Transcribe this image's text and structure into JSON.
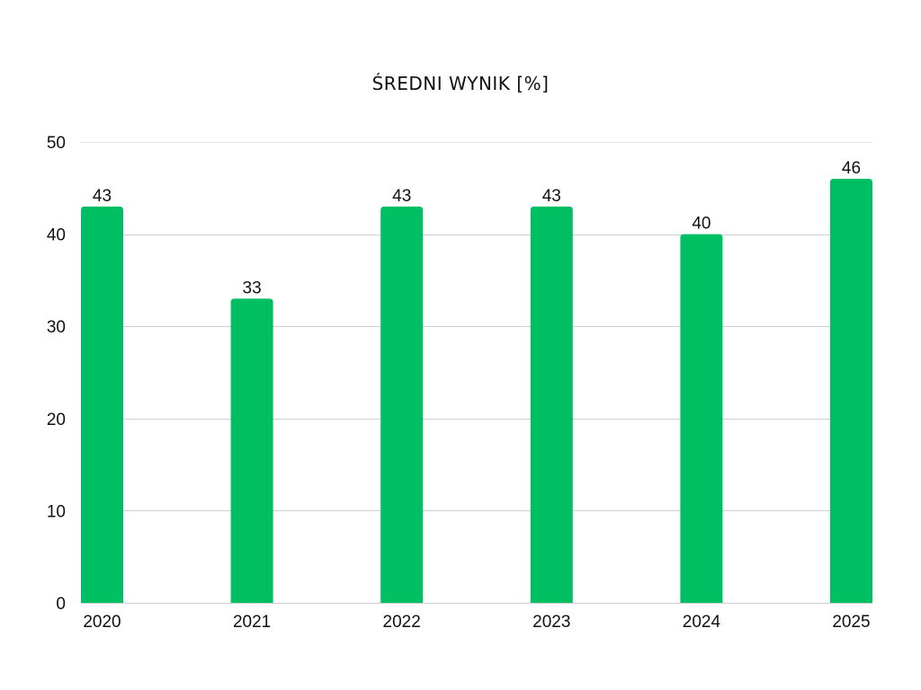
{
  "chart_data": {
    "type": "bar",
    "title": "ŚREDNI WYNIK [%]",
    "xlabel": "",
    "ylabel": "",
    "categories": [
      "2020",
      "2021",
      "2022",
      "2023",
      "2024",
      "2025"
    ],
    "values": [
      43,
      33,
      43,
      43,
      40,
      46
    ],
    "data_labels": [
      "43",
      "33",
      "43",
      "43",
      "40",
      "46"
    ],
    "ylim": [
      0,
      50
    ],
    "y_ticks": [
      0,
      10,
      20,
      30,
      40,
      50
    ],
    "y_tick_labels": [
      "0",
      "10",
      "20",
      "30",
      "40",
      "50"
    ],
    "grid": true,
    "legend": "none",
    "bar_color": "#00BF63"
  }
}
